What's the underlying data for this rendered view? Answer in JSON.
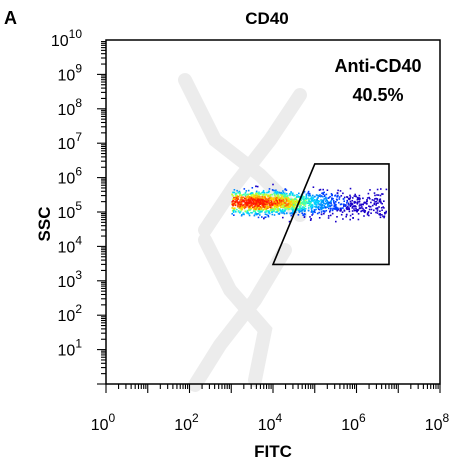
{
  "chart_data": {
    "type": "scatter",
    "panel_label": "A",
    "title": "CD40",
    "xlabel": "FITC",
    "ylabel": "SSC",
    "x_scale": "log",
    "y_scale": "log",
    "xlim": [
      1,
      100000000
    ],
    "ylim": [
      1,
      10000000000
    ],
    "x_ticks": [
      {
        "base": "10",
        "exp": "0",
        "value": 1
      },
      {
        "base": "10",
        "exp": "2",
        "value": 100
      },
      {
        "base": "10",
        "exp": "4",
        "value": 10000
      },
      {
        "base": "10",
        "exp": "6",
        "value": 1000000
      },
      {
        "base": "10",
        "exp": "8",
        "value": 100000000
      }
    ],
    "y_ticks": [
      {
        "base": "10",
        "exp": "1",
        "value": 10
      },
      {
        "base": "10",
        "exp": "2",
        "value": 100
      },
      {
        "base": "10",
        "exp": "3",
        "value": 1000
      },
      {
        "base": "10",
        "exp": "4",
        "value": 10000
      },
      {
        "base": "10",
        "exp": "5",
        "value": 100000
      },
      {
        "base": "10",
        "exp": "6",
        "value": 1000000
      },
      {
        "base": "10",
        "exp": "7",
        "value": 10000000
      },
      {
        "base": "10",
        "exp": "8",
        "value": 100000000
      },
      {
        "base": "10",
        "exp": "9",
        "value": 1000000000
      },
      {
        "base": "10",
        "exp": "10",
        "value": 10000000000
      }
    ],
    "population": {
      "x_range": [
        1000,
        5000000
      ],
      "y_range": [
        30000,
        1000000
      ],
      "densest_point": [
        3000,
        200000
      ]
    },
    "gate": {
      "name": "Anti-CD40",
      "percent": "40.5%",
      "vertices": [
        [
          10000,
          3000
        ],
        [
          100000,
          2500000
        ],
        [
          6000000,
          2500000
        ],
        [
          6000000,
          3000
        ]
      ]
    },
    "colors": {
      "density_low": "#0000cc",
      "density_mid": "#00b4ff",
      "density_high": "#ff2000",
      "gate_stroke": "#000000"
    },
    "grid": false
  }
}
